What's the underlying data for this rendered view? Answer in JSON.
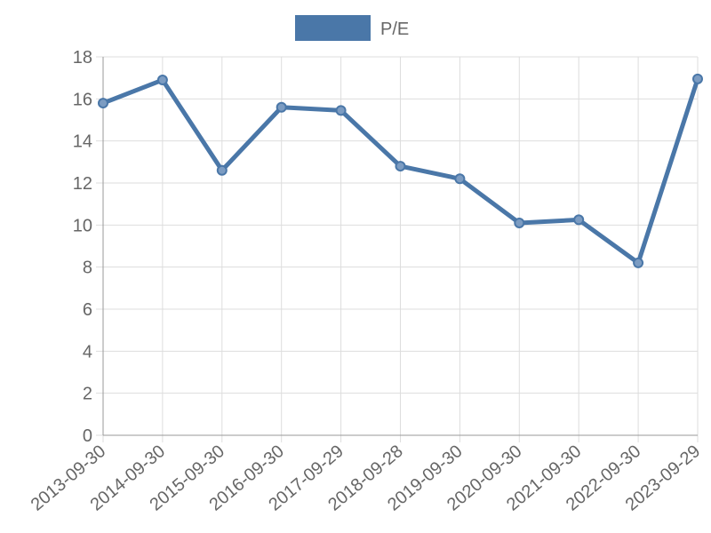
{
  "chart_data": {
    "type": "line",
    "categories": [
      "2013-09-30",
      "2014-09-30",
      "2015-09-30",
      "2016-09-30",
      "2017-09-29",
      "2018-09-28",
      "2019-09-30",
      "2020-09-30",
      "2021-09-30",
      "2022-09-30",
      "2023-09-29"
    ],
    "series": [
      {
        "name": "P/E",
        "color": "#4a77a8",
        "values": [
          15.8,
          16.9,
          12.6,
          15.6,
          15.45,
          12.8,
          12.2,
          10.1,
          10.25,
          8.2,
          16.95
        ]
      }
    ],
    "ylim": [
      0,
      18
    ],
    "yticks": [
      0,
      2,
      4,
      6,
      8,
      10,
      12,
      14,
      16,
      18
    ],
    "grid": true,
    "legend": "top"
  }
}
